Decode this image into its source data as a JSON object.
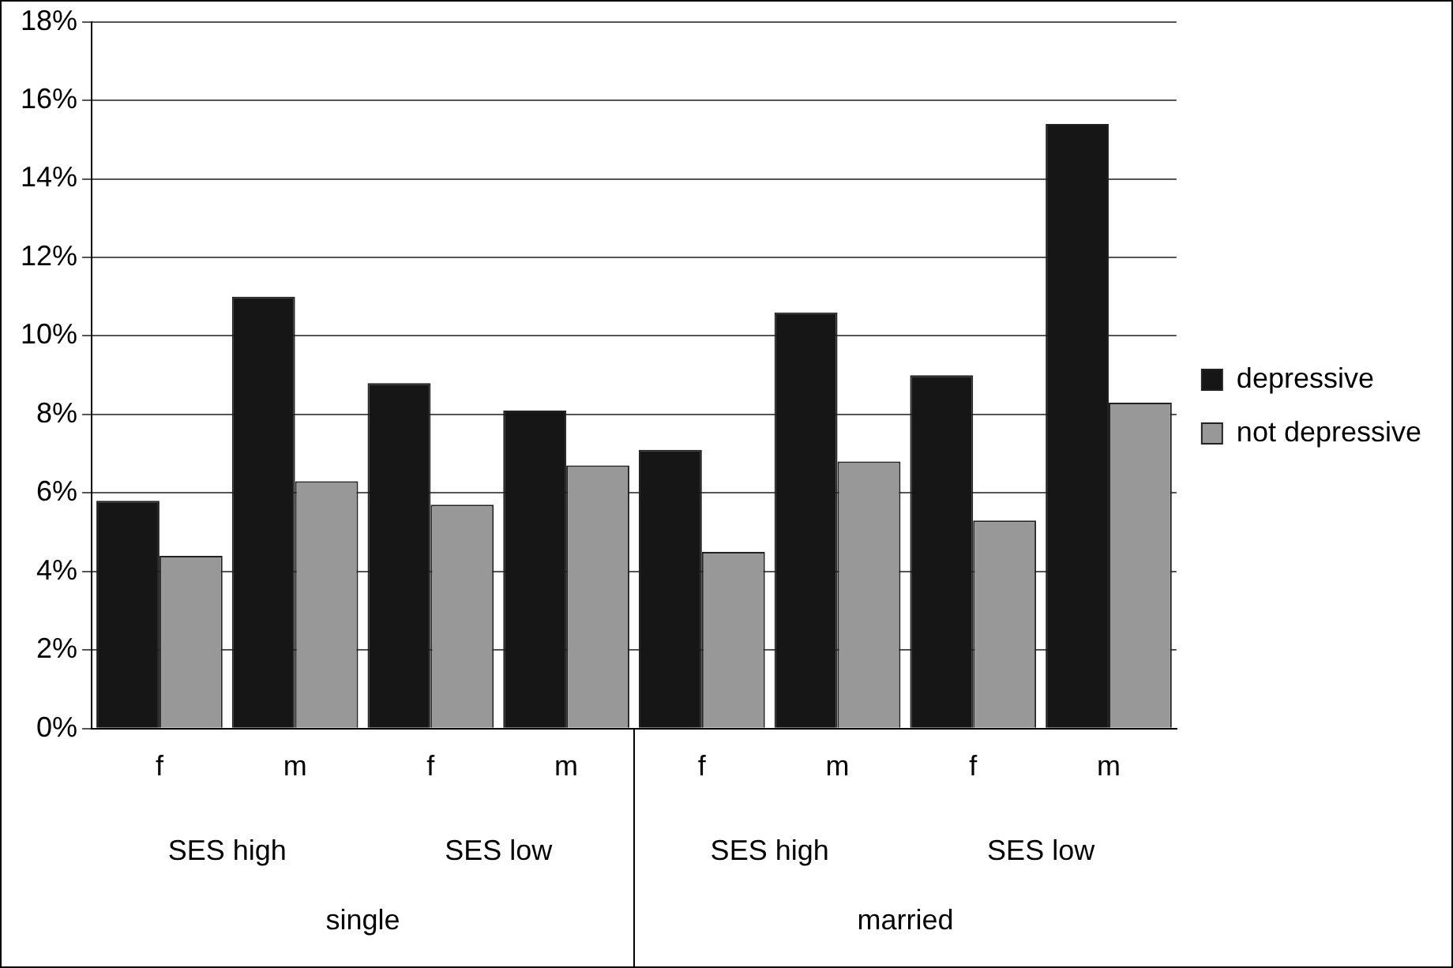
{
  "chart_data": {
    "type": "bar",
    "categories": [
      "f",
      "m",
      "f",
      "m",
      "f",
      "m",
      "f",
      "m"
    ],
    "series": [
      {
        "name": "depressive",
        "color": "#161616",
        "values": [
          5.8,
          11.0,
          8.8,
          8.1,
          7.1,
          10.6,
          9.0,
          15.4
        ]
      },
      {
        "name": "not depressive",
        "color": "#989898",
        "values": [
          4.4,
          6.3,
          5.7,
          6.7,
          4.5,
          6.8,
          5.3,
          8.3
        ]
      }
    ],
    "annotations": [
      "SES high",
      "SES low",
      "SES high",
      "SES low",
      "single",
      "married"
    ],
    "ylim": [
      0,
      18
    ],
    "yticks": [
      {
        "value": 0,
        "label": "0%"
      },
      {
        "value": 2,
        "label": "2%"
      },
      {
        "value": 4,
        "label": "4%"
      },
      {
        "value": 6,
        "label": "6%"
      },
      {
        "value": 8,
        "label": "8%"
      },
      {
        "value": 10,
        "label": "10%"
      },
      {
        "value": 12,
        "label": "12%"
      },
      {
        "value": 14,
        "label": "14%"
      },
      {
        "value": 16,
        "label": "16%"
      },
      {
        "value": 18,
        "label": "18%"
      }
    ],
    "grid": "y",
    "legend": "right"
  }
}
